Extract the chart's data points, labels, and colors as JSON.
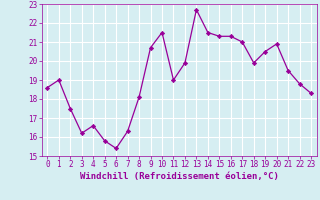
{
  "x": [
    0,
    1,
    2,
    3,
    4,
    5,
    6,
    7,
    8,
    9,
    10,
    11,
    12,
    13,
    14,
    15,
    16,
    17,
    18,
    19,
    20,
    21,
    22,
    23
  ],
  "y": [
    18.6,
    19.0,
    17.5,
    16.2,
    16.6,
    15.8,
    15.4,
    16.3,
    18.1,
    20.7,
    21.5,
    19.0,
    19.9,
    22.7,
    21.5,
    21.3,
    21.3,
    21.0,
    19.9,
    20.5,
    20.9,
    19.5,
    18.8,
    18.3
  ],
  "line_color": "#990099",
  "marker": "D",
  "markersize": 2.2,
  "linewidth": 0.9,
  "xlabel": "Windchill (Refroidissement éolien,°C)",
  "xlim": [
    -0.5,
    23.5
  ],
  "ylim": [
    15,
    23
  ],
  "yticks": [
    15,
    16,
    17,
    18,
    19,
    20,
    21,
    22,
    23
  ],
  "xticks": [
    0,
    1,
    2,
    3,
    4,
    5,
    6,
    7,
    8,
    9,
    10,
    11,
    12,
    13,
    14,
    15,
    16,
    17,
    18,
    19,
    20,
    21,
    22,
    23
  ],
  "background_color": "#d6eef2",
  "grid_color": "#ffffff",
  "tick_color": "#990099",
  "label_color": "#990099",
  "tick_fontsize": 5.5,
  "xlabel_fontsize": 6.5
}
